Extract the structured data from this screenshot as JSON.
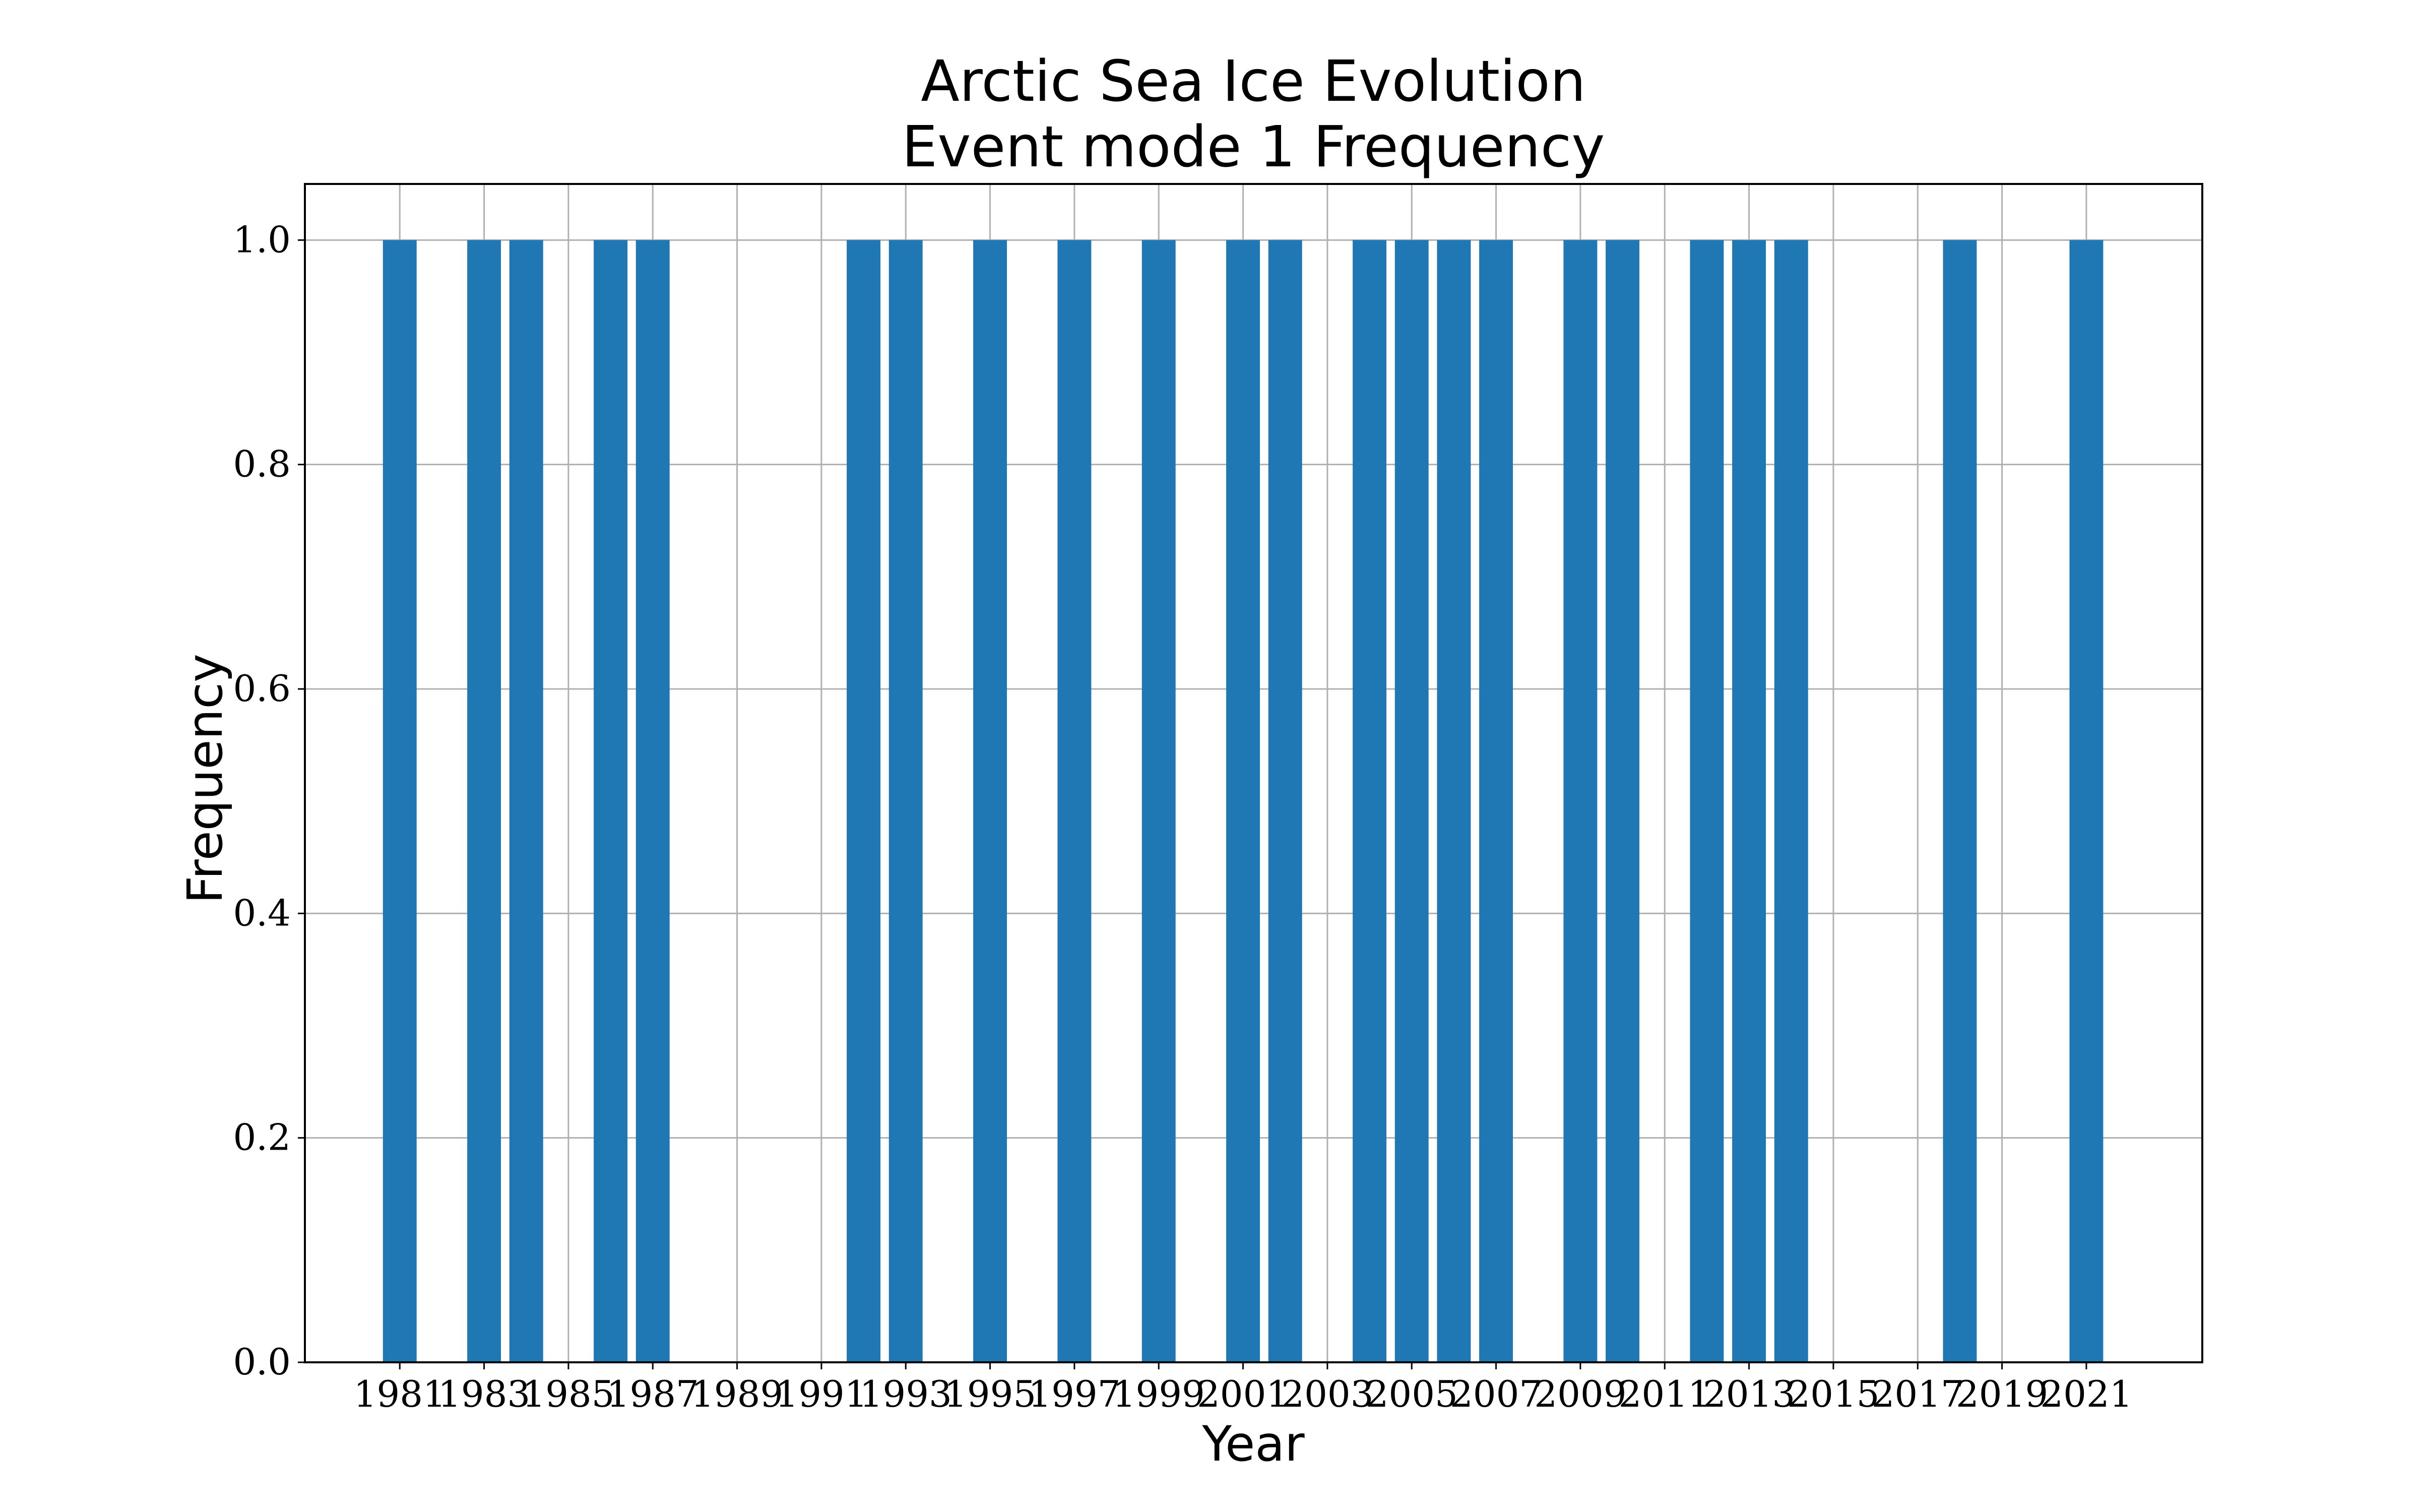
{
  "chart_data": {
    "type": "bar",
    "title_lines": [
      "Arctic Sea Ice Evolution",
      "Event mode 1 Frequency"
    ],
    "xlabel": "Year",
    "ylabel": "Frequency",
    "xlim": [
      1978.75,
      2023.75
    ],
    "ylim": [
      0.0,
      1.05
    ],
    "x_ticks": [
      1981,
      1983,
      1985,
      1987,
      1989,
      1991,
      1993,
      1995,
      1997,
      1999,
      2001,
      2003,
      2005,
      2007,
      2009,
      2011,
      2013,
      2015,
      2017,
      2019,
      2021
    ],
    "y_ticks": [
      "0.0",
      "0.2",
      "0.4",
      "0.6",
      "0.8",
      "1.0"
    ],
    "bar_width_years": 0.8,
    "bar_color": "#1f77b4",
    "grid": true,
    "x": [
      1981,
      1983,
      1984,
      1986,
      1987,
      1992,
      1993,
      1995,
      1997,
      1999,
      2001,
      2002,
      2004,
      2005,
      2006,
      2007,
      2009,
      2010,
      2012,
      2013,
      2014,
      2018,
      2021
    ],
    "values": [
      1,
      1,
      1,
      1,
      1,
      1,
      1,
      1,
      1,
      1,
      1,
      1,
      1,
      1,
      1,
      1,
      1,
      1,
      1,
      1,
      1,
      1,
      1
    ]
  }
}
